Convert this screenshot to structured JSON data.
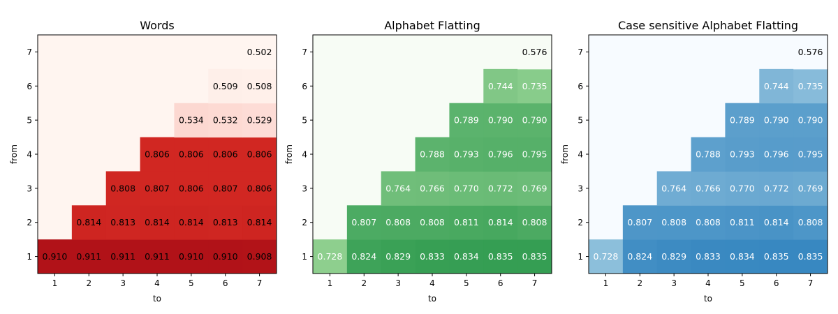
{
  "chart_data": [
    {
      "type": "heatmap",
      "title": "Words",
      "xlabel": "to",
      "ylabel": "from",
      "x_ticks": [
        "1",
        "2",
        "3",
        "4",
        "5",
        "6",
        "7"
      ],
      "y_ticks": [
        "1",
        "2",
        "3",
        "4",
        "5",
        "6",
        "7"
      ],
      "colormap": "Reds",
      "colors": {
        "low": "#fff5f0",
        "mid": "#ef3b2c",
        "high": "#b11218"
      },
      "value_range": [
        0.502,
        0.911
      ],
      "cells": [
        {
          "from": 1,
          "to": 1,
          "value": "0.910"
        },
        {
          "from": 1,
          "to": 2,
          "value": "0.911"
        },
        {
          "from": 1,
          "to": 3,
          "value": "0.911"
        },
        {
          "from": 1,
          "to": 4,
          "value": "0.911"
        },
        {
          "from": 1,
          "to": 5,
          "value": "0.910"
        },
        {
          "from": 1,
          "to": 6,
          "value": "0.910"
        },
        {
          "from": 1,
          "to": 7,
          "value": "0.908"
        },
        {
          "from": 2,
          "to": 2,
          "value": "0.814"
        },
        {
          "from": 2,
          "to": 3,
          "value": "0.813"
        },
        {
          "from": 2,
          "to": 4,
          "value": "0.814"
        },
        {
          "from": 2,
          "to": 5,
          "value": "0.814"
        },
        {
          "from": 2,
          "to": 6,
          "value": "0.813"
        },
        {
          "from": 2,
          "to": 7,
          "value": "0.814"
        },
        {
          "from": 3,
          "to": 3,
          "value": "0.808"
        },
        {
          "from": 3,
          "to": 4,
          "value": "0.807"
        },
        {
          "from": 3,
          "to": 5,
          "value": "0.806"
        },
        {
          "from": 3,
          "to": 6,
          "value": "0.807"
        },
        {
          "from": 3,
          "to": 7,
          "value": "0.806"
        },
        {
          "from": 4,
          "to": 4,
          "value": "0.806"
        },
        {
          "from": 4,
          "to": 5,
          "value": "0.806"
        },
        {
          "from": 4,
          "to": 6,
          "value": "0.806"
        },
        {
          "from": 4,
          "to": 7,
          "value": "0.806"
        },
        {
          "from": 5,
          "to": 5,
          "value": "0.534"
        },
        {
          "from": 5,
          "to": 6,
          "value": "0.532"
        },
        {
          "from": 5,
          "to": 7,
          "value": "0.529"
        },
        {
          "from": 6,
          "to": 6,
          "value": "0.509"
        },
        {
          "from": 6,
          "to": 7,
          "value": "0.508"
        },
        {
          "from": 7,
          "to": 7,
          "value": "0.502"
        }
      ]
    },
    {
      "type": "heatmap",
      "title": "Alphabet Flatting",
      "xlabel": "to",
      "ylabel": "from",
      "x_ticks": [
        "1",
        "2",
        "3",
        "4",
        "5",
        "6",
        "7"
      ],
      "y_ticks": [
        "1",
        "2",
        "3",
        "4",
        "5",
        "6",
        "7"
      ],
      "colormap": "Greens",
      "colors": {
        "low": "#f7fcf5",
        "mid": "#a1d99b",
        "high": "#359e53"
      },
      "value_range": [
        0.576,
        0.835
      ],
      "cells": [
        {
          "from": 1,
          "to": 1,
          "value": "0.728"
        },
        {
          "from": 1,
          "to": 2,
          "value": "0.824"
        },
        {
          "from": 1,
          "to": 3,
          "value": "0.829"
        },
        {
          "from": 1,
          "to": 4,
          "value": "0.833"
        },
        {
          "from": 1,
          "to": 5,
          "value": "0.834"
        },
        {
          "from": 1,
          "to": 6,
          "value": "0.835"
        },
        {
          "from": 1,
          "to": 7,
          "value": "0.835"
        },
        {
          "from": 2,
          "to": 2,
          "value": "0.807"
        },
        {
          "from": 2,
          "to": 3,
          "value": "0.808"
        },
        {
          "from": 2,
          "to": 4,
          "value": "0.808"
        },
        {
          "from": 2,
          "to": 5,
          "value": "0.811"
        },
        {
          "from": 2,
          "to": 6,
          "value": "0.814"
        },
        {
          "from": 2,
          "to": 7,
          "value": "0.808"
        },
        {
          "from": 3,
          "to": 3,
          "value": "0.764"
        },
        {
          "from": 3,
          "to": 4,
          "value": "0.766"
        },
        {
          "from": 3,
          "to": 5,
          "value": "0.770"
        },
        {
          "from": 3,
          "to": 6,
          "value": "0.772"
        },
        {
          "from": 3,
          "to": 7,
          "value": "0.769"
        },
        {
          "from": 4,
          "to": 4,
          "value": "0.788"
        },
        {
          "from": 4,
          "to": 5,
          "value": "0.793"
        },
        {
          "from": 4,
          "to": 6,
          "value": "0.796"
        },
        {
          "from": 4,
          "to": 7,
          "value": "0.795"
        },
        {
          "from": 5,
          "to": 5,
          "value": "0.789"
        },
        {
          "from": 5,
          "to": 6,
          "value": "0.790"
        },
        {
          "from": 5,
          "to": 7,
          "value": "0.790"
        },
        {
          "from": 6,
          "to": 6,
          "value": "0.744"
        },
        {
          "from": 6,
          "to": 7,
          "value": "0.735"
        },
        {
          "from": 7,
          "to": 7,
          "value": "0.576"
        }
      ]
    },
    {
      "type": "heatmap",
      "title": "Case sensitive Alphabet Flatting",
      "xlabel": "to",
      "ylabel": "from",
      "x_ticks": [
        "1",
        "2",
        "3",
        "4",
        "5",
        "6",
        "7"
      ],
      "y_ticks": [
        "1",
        "2",
        "3",
        "4",
        "5",
        "6",
        "7"
      ],
      "colormap": "Blues",
      "colors": {
        "low": "#f7fbff",
        "mid": "#9ecae1",
        "high": "#3888c1"
      },
      "value_range": [
        0.576,
        0.835
      ],
      "cells": [
        {
          "from": 1,
          "to": 1,
          "value": "0.728"
        },
        {
          "from": 1,
          "to": 2,
          "value": "0.824"
        },
        {
          "from": 1,
          "to": 3,
          "value": "0.829"
        },
        {
          "from": 1,
          "to": 4,
          "value": "0.833"
        },
        {
          "from": 1,
          "to": 5,
          "value": "0.834"
        },
        {
          "from": 1,
          "to": 6,
          "value": "0.835"
        },
        {
          "from": 1,
          "to": 7,
          "value": "0.835"
        },
        {
          "from": 2,
          "to": 2,
          "value": "0.807"
        },
        {
          "from": 2,
          "to": 3,
          "value": "0.808"
        },
        {
          "from": 2,
          "to": 4,
          "value": "0.808"
        },
        {
          "from": 2,
          "to": 5,
          "value": "0.811"
        },
        {
          "from": 2,
          "to": 6,
          "value": "0.814"
        },
        {
          "from": 2,
          "to": 7,
          "value": "0.808"
        },
        {
          "from": 3,
          "to": 3,
          "value": "0.764"
        },
        {
          "from": 3,
          "to": 4,
          "value": "0.766"
        },
        {
          "from": 3,
          "to": 5,
          "value": "0.770"
        },
        {
          "from": 3,
          "to": 6,
          "value": "0.772"
        },
        {
          "from": 3,
          "to": 7,
          "value": "0.769"
        },
        {
          "from": 4,
          "to": 4,
          "value": "0.788"
        },
        {
          "from": 4,
          "to": 5,
          "value": "0.793"
        },
        {
          "from": 4,
          "to": 6,
          "value": "0.796"
        },
        {
          "from": 4,
          "to": 7,
          "value": "0.795"
        },
        {
          "from": 5,
          "to": 5,
          "value": "0.789"
        },
        {
          "from": 5,
          "to": 6,
          "value": "0.790"
        },
        {
          "from": 5,
          "to": 7,
          "value": "0.790"
        },
        {
          "from": 6,
          "to": 6,
          "value": "0.744"
        },
        {
          "from": 6,
          "to": 7,
          "value": "0.735"
        },
        {
          "from": 7,
          "to": 7,
          "value": "0.576"
        }
      ]
    }
  ]
}
